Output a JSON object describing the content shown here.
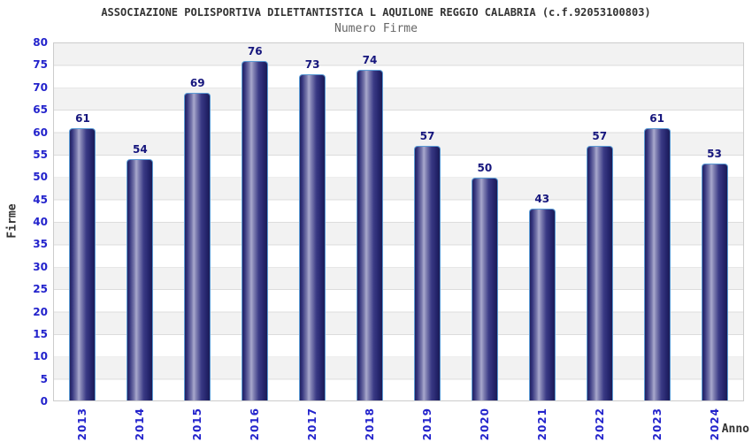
{
  "header": {
    "title": "ASSOCIAZIONE POLISPORTIVA DILETTANTISTICA L AQUILONE REGGIO CALABRIA (c.f.92053100803)",
    "subtitle": "Numero Firme"
  },
  "chart_data": {
    "type": "bar",
    "title": "ASSOCIAZIONE POLISPORTIVA DILETTANTISTICA L AQUILONE REGGIO CALABRIA (c.f.92053100803)",
    "subtitle": "Numero Firme",
    "categories": [
      "2013",
      "2014",
      "2015",
      "2016",
      "2017",
      "2018",
      "2019",
      "2020",
      "2021",
      "2022",
      "2023",
      "2024"
    ],
    "values": [
      61,
      54,
      69,
      76,
      73,
      74,
      57,
      50,
      43,
      57,
      61,
      53
    ],
    "xlabel": "Anno",
    "ylabel": "Firme",
    "ylim": [
      0,
      80
    ],
    "ytick_step": 5,
    "grid": true,
    "legend_position": "none",
    "colors": {
      "bar_dark": "#1e1e64",
      "bar_highlight": "#a9a9cd",
      "bar_border": "#5b9bd5",
      "tick_label": "#2323cc",
      "value_label": "#16167d",
      "band_gray": "#f2f2f2",
      "band_white": "#ffffff",
      "gridline": "#dcdcdc",
      "plot_border": "#cccccc",
      "title_color": "#333333",
      "subtitle_color": "#666666"
    }
  }
}
